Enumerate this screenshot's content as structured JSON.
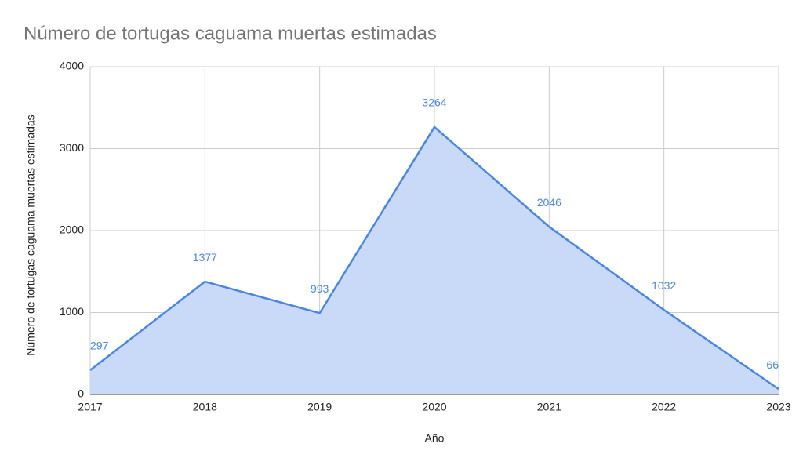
{
  "chart_data": {
    "type": "area",
    "title": "Número de tortugas caguama muertas estimadas",
    "x_label": "Año",
    "y_label": "Número de tortugas caguama muertas estimadas",
    "x": [
      2017,
      2018,
      2019,
      2020,
      2021,
      2022,
      2023
    ],
    "values": [
      297,
      1377,
      993,
      3264,
      2046,
      1032,
      66
    ],
    "color": "#4a86e8",
    "fill": "#c9daf8",
    "xlim": [
      2017,
      2023
    ],
    "xticks": [
      2017,
      2018,
      2019,
      2020,
      2021,
      2022,
      2023
    ],
    "ylim": [
      0,
      4000
    ],
    "yticks": [
      0,
      1000,
      2000,
      3000,
      4000
    ],
    "grid": true,
    "data_labels": true
  }
}
